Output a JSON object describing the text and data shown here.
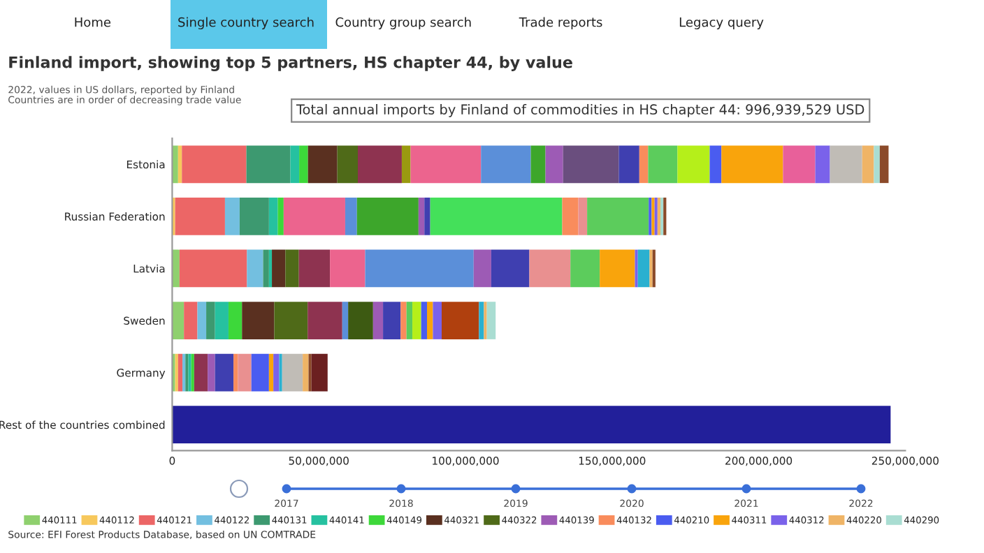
{
  "chart_data": {
    "type": "bar",
    "orientation": "horizontal",
    "stacked": true,
    "title": "Finland import, showing top 5 partners, HS chapter 44, by value",
    "subtitle": "2022, values in US dollars, reported by Finland\nCountries are in order of decreasing trade value",
    "categories": [
      "Estonia",
      "Russian Federation",
      "Latvia",
      "Sweden",
      "Germany",
      "Rest of the countries combined"
    ],
    "xlim": [
      0,
      250000000
    ],
    "xticks": [
      0,
      {
        "value": 50000000,
        "label": "50,000,000"
      },
      {
        "value": 100000000,
        "label": "100,000,000"
      },
      {
        "value": 150000000,
        "label": "150,000,000"
      },
      {
        "value": 200000000,
        "label": "200,000,000"
      },
      {
        "value": 250000000,
        "label": "250,000,000"
      }
    ],
    "grid": false,
    "legend": "bottom",
    "annotations": [
      "Total annual imports by Finland of commodities in HS chapter 44: 996,939,529 USD",
      "Source: EFI Forest Products Database, based on UN COMTRADE",
      "Home",
      "Single country search",
      "Country group search",
      "Trade reports",
      "Legacy query",
      "2017",
      "2018",
      "2019",
      "2020",
      "2021",
      "2022"
    ],
    "series": [
      {
        "name": "440111",
        "color": "#8fd06e",
        "values": [
          2000000,
          null,
          2500000,
          4000000,
          1000000,
          null
        ]
      },
      {
        "name": "440112",
        "color": "#f7c85c",
        "values": [
          1300000,
          1000000,
          null,
          null,
          1000000,
          null
        ]
      },
      {
        "name": "440121",
        "color": "#ec6666",
        "values": [
          22000000,
          17000000,
          23000000,
          4600000,
          1500000,
          null
        ]
      },
      {
        "name": "440122",
        "color": "#73bfe0",
        "values": [
          null,
          5000000,
          5500000,
          3000000,
          1000000,
          null
        ]
      },
      {
        "name": "440131",
        "color": "#3d9970",
        "values": [
          15000000,
          10000000,
          2000000,
          3000000,
          1000000,
          null
        ]
      },
      {
        "name": "440141",
        "color": "#26c1a0",
        "values": [
          3000000,
          3000000,
          1000000,
          4600000,
          1000000,
          null
        ]
      },
      {
        "name": "440149",
        "color": "#3dd83a",
        "values": [
          3000000,
          2000000,
          null,
          4600000,
          1000000,
          null
        ]
      },
      {
        "name": "440321",
        "color": "#5a3020",
        "values": [
          10000000,
          null,
          4600000,
          11000000,
          null,
          null
        ]
      },
      {
        "name": "440322",
        "color": "#4f6a18",
        "values": [
          7000000,
          null,
          4600000,
          11400000,
          null,
          null
        ]
      },
      {
        "color": "#8e3350",
        "values": [
          15000000,
          null,
          10600000,
          11800000,
          4600000,
          null
        ]
      },
      {
        "color": "#9a9a10",
        "values": [
          3000000,
          null,
          null,
          null,
          null,
          null
        ]
      },
      {
        "color": "#ec648e",
        "values": [
          24000000,
          21000000,
          12000000,
          null,
          null,
          null
        ]
      },
      {
        "color": "#5b8fd9",
        "values": [
          17000000,
          4000000,
          37000000,
          2000000,
          null,
          null
        ]
      },
      {
        "color": "#3d5a12",
        "values": [
          null,
          null,
          null,
          8500000,
          null,
          null
        ]
      },
      {
        "color": "#3da62b",
        "values": [
          5000000,
          21000000,
          null,
          null,
          null,
          null
        ]
      },
      {
        "name": "440139",
        "color": "#9d5bb5",
        "values": [
          6000000,
          2000000,
          6000000,
          3400000,
          2500000,
          null
        ]
      },
      {
        "color": "#6a4e7e",
        "values": [
          19000000,
          null,
          null,
          null,
          null,
          null
        ]
      },
      {
        "color": "#3f3fb0",
        "values": [
          7000000,
          2000000,
          13000000,
          6000000,
          6300000,
          null
        ]
      },
      {
        "color": "#44e05a",
        "values": [
          null,
          45000000,
          null,
          null,
          null,
          null
        ]
      },
      {
        "name": "440132",
        "color": "#f98c5c",
        "values": [
          3000000,
          5500000,
          null,
          2000000,
          1500000,
          null
        ]
      },
      {
        "color": "#e99090",
        "values": [
          null,
          3000000,
          14000000,
          null,
          4600000,
          null
        ]
      },
      {
        "color": "#5ccc5c",
        "values": [
          10000000,
          21000000,
          10000000,
          2000000,
          null,
          null
        ]
      },
      {
        "color": "#b5ef1a",
        "values": [
          11000000,
          null,
          null,
          3000000,
          null,
          null
        ]
      },
      {
        "name": "440210",
        "color": "#4a5cf0",
        "values": [
          4000000,
          1000000,
          null,
          2000000,
          6000000,
          null
        ]
      },
      {
        "name": "440311",
        "color": "#f9a40c",
        "values": [
          21000000,
          1000000,
          12000000,
          2000000,
          1500000,
          null
        ]
      },
      {
        "color": "#e8609a",
        "values": [
          11000000,
          null,
          null,
          null,
          null,
          null
        ]
      },
      {
        "name": "440312",
        "color": "#7a62ea",
        "values": [
          5000000,
          1000000,
          1000000,
          3000000,
          2000000,
          null
        ]
      },
      {
        "color": "#b0400e",
        "values": [
          null,
          null,
          null,
          12700000,
          null,
          null
        ]
      },
      {
        "color": "#2ab0d0",
        "values": [
          null,
          null,
          4000000,
          1700000,
          1000000,
          null
        ]
      },
      {
        "color": "#c0bcb6",
        "values": [
          11000000,
          null,
          null,
          null,
          7000000,
          null
        ]
      },
      {
        "name": "440220",
        "color": "#efb466",
        "values": [
          4000000,
          1000000,
          1000000,
          1000000,
          2000000,
          null
        ]
      },
      {
        "name": "440290",
        "color": "#a9ddd2",
        "values": [
          2000000,
          1000000,
          null,
          3000000,
          null,
          null
        ]
      },
      {
        "color": "#8b4a2a",
        "values": [
          3000000,
          1000000,
          1000000,
          null,
          1000000,
          null
        ]
      },
      {
        "color": "#6b2020",
        "values": [
          null,
          null,
          null,
          null,
          5500000,
          null
        ]
      },
      {
        "color": "#221f9a",
        "values": [
          null,
          null,
          null,
          null,
          null,
          245000000
        ]
      }
    ]
  }
}
